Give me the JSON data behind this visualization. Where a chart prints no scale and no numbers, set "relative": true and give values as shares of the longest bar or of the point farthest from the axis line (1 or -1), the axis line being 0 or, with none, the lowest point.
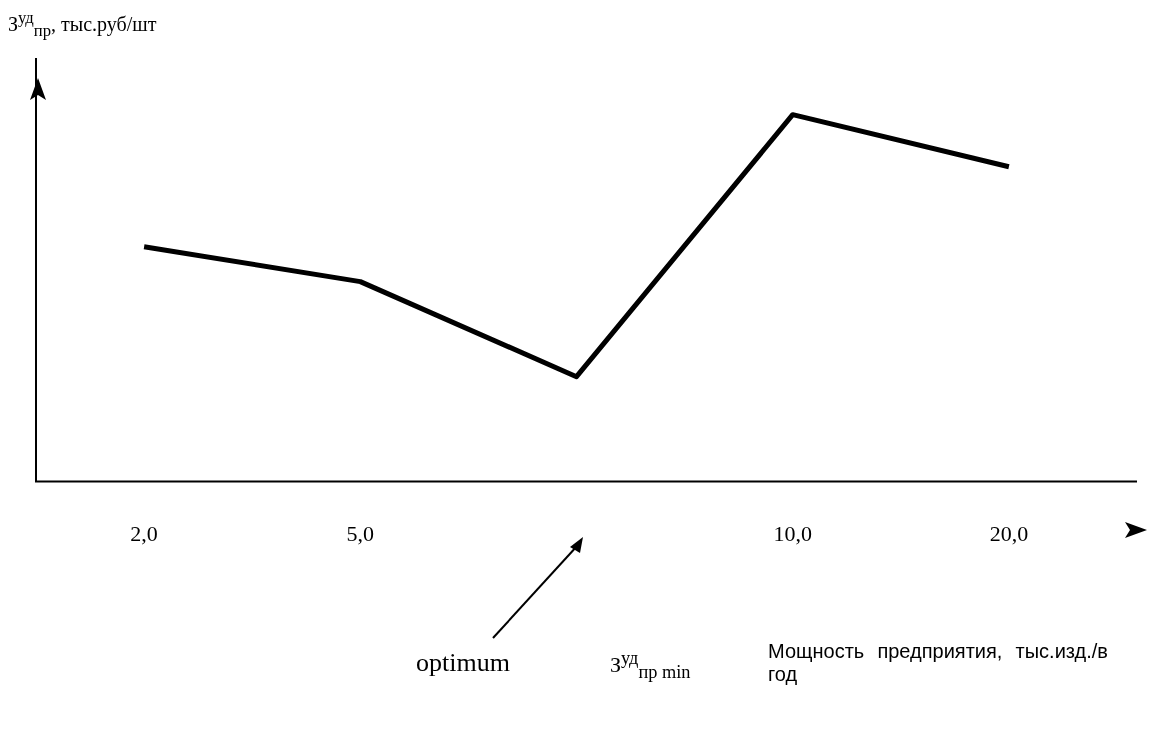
{
  "chart_data": {
    "type": "line",
    "relative": true,
    "ylabel": "З$^{уд}$$_{пр}$, тыс.руб/шт",
    "xlabel": "Мощность предприятия, тыс.изд./в год",
    "categories": [
      "2,0",
      "5,0",
      null,
      "10,0",
      "20,0"
    ],
    "series": [
      {
        "color": "#000000",
        "values": [
          0.64,
          0.545,
          0.286,
          1,
          0.858
        ]
      }
    ],
    "annotations": [
      "optimum",
      "З$^{уд}$$_{пр min}$"
    ],
    "grid": false,
    "legend": false,
    "marker": "none",
    "line_style": "solid"
  }
}
